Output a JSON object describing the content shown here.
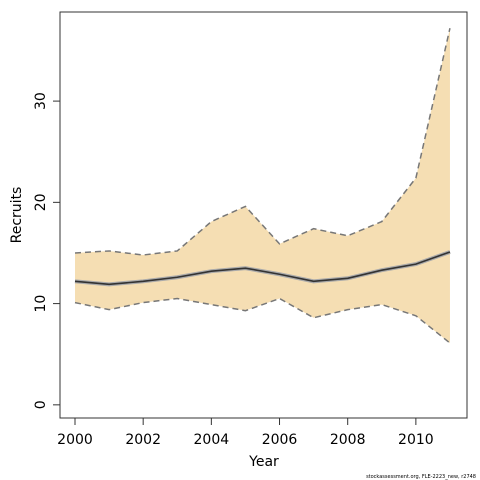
{
  "chart_data": {
    "type": "line",
    "xlabel": "Year",
    "ylabel": "Recruits",
    "footnote": "stockassessment.org, FLE-2223_new, r2748",
    "x": [
      2000,
      2001,
      2002,
      2003,
      2004,
      2005,
      2006,
      2007,
      2008,
      2009,
      2010,
      2011
    ],
    "series": [
      {
        "color": "#333333",
        "values": [
          12.2,
          11.9,
          12.2,
          12.6,
          13.2,
          13.5,
          12.9,
          12.2,
          12.5,
          13.3,
          13.9,
          15.1
        ]
      }
    ],
    "band": {
      "color": "#f5deb3",
      "edge_color": "#777777",
      "upper": [
        15.0,
        15.2,
        14.8,
        15.2,
        18.1,
        19.6,
        15.9,
        17.4,
        16.7,
        18.1,
        22.4,
        37.2
      ],
      "lower": [
        10.1,
        9.4,
        10.1,
        10.5,
        9.9,
        9.3,
        10.5,
        8.6,
        9.4,
        9.9,
        8.8,
        6.1
      ]
    },
    "xlim": [
      1999.56,
      2011.5
    ],
    "ylim": [
      -1.3,
      38.8
    ],
    "xticks": [
      2000,
      2002,
      2004,
      2006,
      2008,
      2010
    ],
    "yticks": [
      0,
      10,
      20,
      30
    ]
  }
}
